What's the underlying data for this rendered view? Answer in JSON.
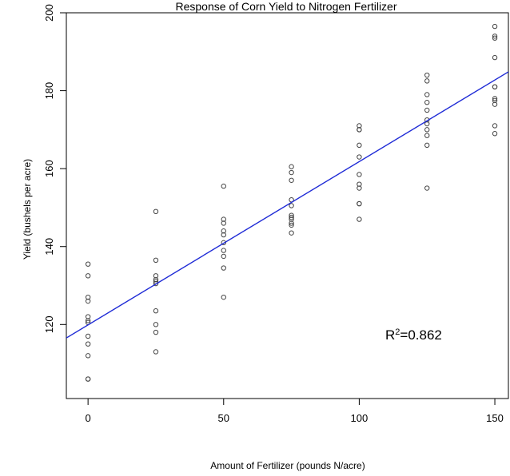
{
  "chart_data": {
    "type": "scatter",
    "title": "Response of Corn Yield to Nitrogen Fertilizer",
    "xlabel": "Amount of Fertilizer (pounds N/acre)",
    "ylabel": "Yield (bushels per acre)",
    "xlim": [
      -8,
      155
    ],
    "ylim": [
      101,
      200
    ],
    "xticks": [
      0,
      50,
      100,
      150
    ],
    "yticks": [
      120,
      140,
      160,
      180,
      200
    ],
    "grid": false,
    "series": [
      {
        "x": [
          0,
          0,
          0,
          0,
          0,
          0,
          0,
          0,
          0,
          0,
          0,
          0,
          25,
          25,
          25,
          25,
          25,
          25,
          25,
          25,
          25,
          25,
          50,
          50,
          50,
          50,
          50,
          50,
          50,
          50,
          50,
          50,
          75,
          75,
          75,
          75,
          75,
          75,
          75,
          75,
          75,
          75,
          75,
          100,
          100,
          100,
          100,
          100,
          100,
          100,
          100,
          100,
          100,
          100,
          125,
          125,
          125,
          125,
          125,
          125,
          125,
          125,
          125,
          125,
          125,
          150,
          150,
          150,
          150,
          150,
          150,
          150,
          150,
          150,
          150,
          150
        ],
        "y": [
          135.5,
          132.5,
          127,
          126,
          122,
          120.5,
          117,
          115,
          112,
          106,
          106,
          121,
          149,
          136.5,
          132.5,
          131.5,
          131,
          123.5,
          120,
          118,
          113,
          130.5,
          155.5,
          147,
          146,
          143,
          141,
          139,
          137.5,
          134.5,
          127,
          144,
          160.5,
          159,
          157,
          152,
          148,
          147.5,
          147,
          146,
          145.5,
          143.5,
          150.5,
          171,
          170,
          166,
          163,
          158.5,
          156,
          151,
          151,
          147,
          170,
          155,
          184,
          182.5,
          179,
          177,
          175,
          172.5,
          170,
          168.5,
          166,
          155,
          171.5,
          196.5,
          194,
          193.5,
          188.5,
          181,
          181,
          177.5,
          176.5,
          171,
          169,
          178
        ]
      }
    ],
    "fit_line": {
      "intercept": 119.9,
      "slope": 0.419
    },
    "annotation": {
      "base": "R",
      "sup": "2",
      "rest": "=0.862"
    }
  }
}
